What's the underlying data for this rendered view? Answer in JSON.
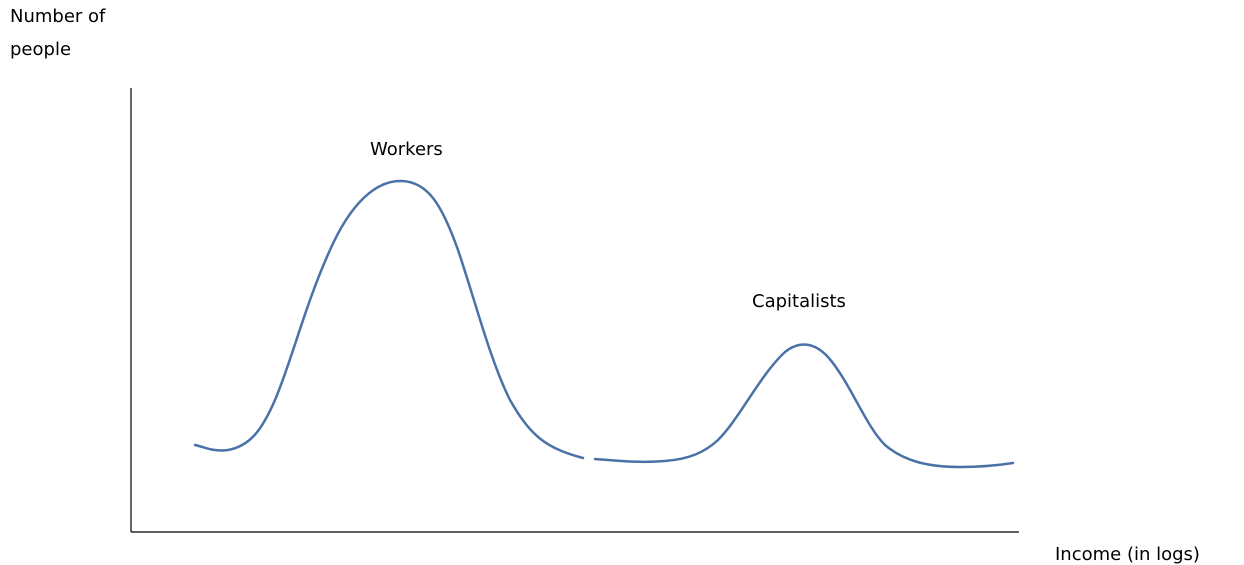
{
  "axis_labels": {
    "y": [
      "Number of",
      "people"
    ],
    "x": "Income (in logs)"
  },
  "annotations": {
    "workers": "Workers",
    "capitalists": "Capitalists"
  }
}
